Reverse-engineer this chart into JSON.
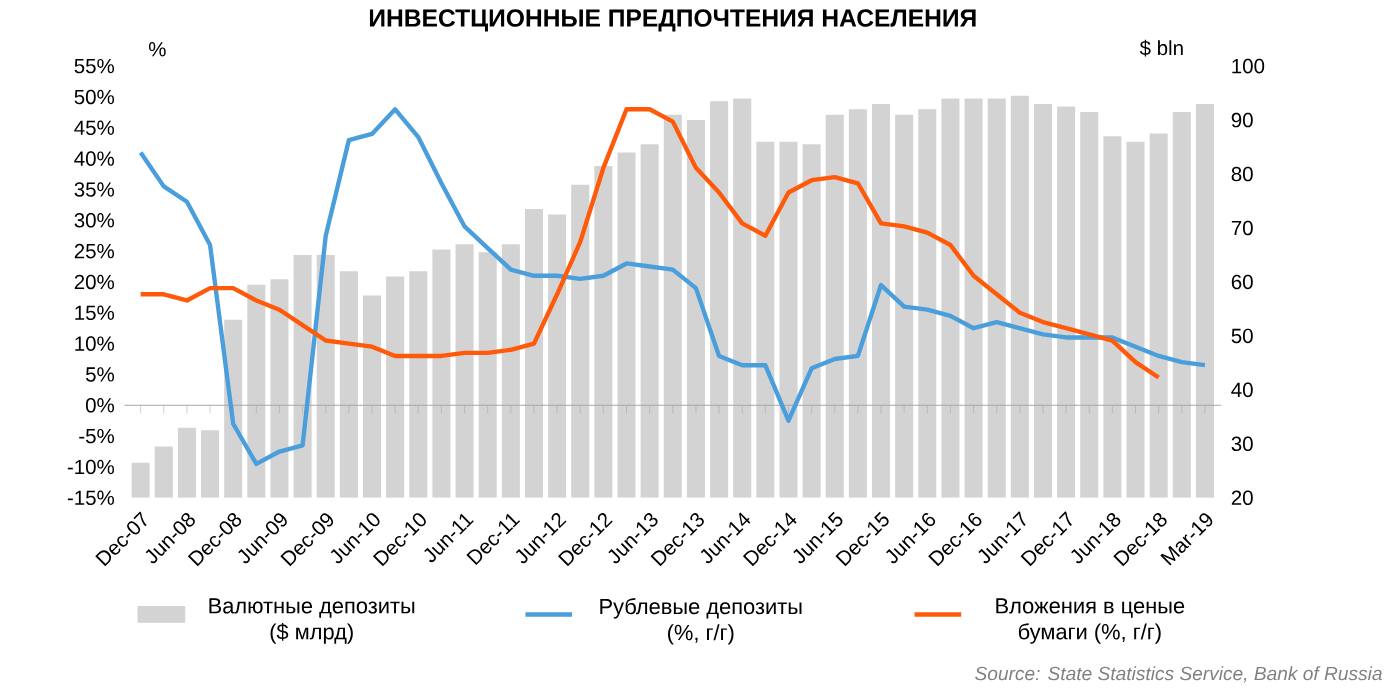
{
  "chart_data": {
    "type": "bar",
    "title": "ИНВЕСТЦИОННЫЕ ПРЕДПОЧТЕНИЯ НАСЕЛЕНИЯ",
    "ylabel": "%",
    "y2label": "$ bln",
    "categories": [
      "Dec-07",
      null,
      "Jun-08",
      null,
      "Dec-08",
      null,
      "Jun-09",
      null,
      "Dec-09",
      null,
      "Jun-10",
      null,
      "Dec-10",
      null,
      "Jun-11",
      null,
      "Dec-11",
      null,
      "Jun-12",
      null,
      "Dec-12",
      null,
      "Jun-13",
      null,
      "Dec-13",
      null,
      "Jun-14",
      null,
      "Dec-14",
      null,
      "Jun-15",
      null,
      "Dec-15",
      null,
      "Jun-16",
      null,
      "Dec-16",
      null,
      "Jun-17",
      null,
      "Dec-17",
      null,
      "Jun-18",
      null,
      "Dec-18",
      null,
      "Mar-19"
    ],
    "series": [
      {
        "name": "Валютные депозиты ($ млрд)",
        "type": "bar",
        "axis": "y2",
        "color": "#d3d3d3",
        "values": [
          26.5,
          29.5,
          33,
          32.5,
          53,
          59.5,
          60.5,
          65,
          65,
          62,
          57.5,
          61,
          62,
          66,
          67,
          65.5,
          67,
          73.5,
          72.5,
          78,
          81.5,
          84,
          85.5,
          91,
          90,
          93.5,
          94,
          86,
          86,
          85.5,
          91,
          92,
          93,
          91,
          92,
          94,
          94,
          94,
          94.5,
          93,
          92.5,
          91.5,
          87,
          86,
          87.5,
          91.5,
          93
        ]
      },
      {
        "name": "Рублевые депозиты (%, г/г)",
        "type": "line",
        "color": "#4a9edb",
        "values": [
          41,
          35.5,
          33,
          26,
          -3,
          -9.5,
          -7.5,
          -6.5,
          27.5,
          43,
          44,
          48,
          43.5,
          36,
          29,
          25.5,
          22,
          21,
          21,
          20.5,
          21,
          23,
          22.5,
          22,
          19,
          8,
          6.5,
          6.5,
          -2.5,
          6,
          7.5,
          8,
          19.5,
          16,
          15.5,
          14.5,
          12.5,
          13.5,
          12.5,
          11.5,
          11,
          11,
          11,
          9.5,
          8,
          7,
          6.5
        ]
      },
      {
        "name": "Вложения в ценые бумаги (%, г/г)",
        "type": "line",
        "color": "#ff5a0a",
        "values": [
          18,
          18,
          17,
          19,
          19,
          17,
          15.5,
          13,
          10.5,
          10,
          9.5,
          8,
          8,
          8,
          8.5,
          8.5,
          9,
          10,
          18,
          26.5,
          38.5,
          48,
          48,
          46,
          38.5,
          34.5,
          29.5,
          27.5,
          34.5,
          36.5,
          37,
          36,
          29.5,
          29,
          28,
          26,
          21,
          18,
          15,
          13.5,
          12.5,
          11.5,
          10.5,
          7,
          4.5,
          null,
          null
        ]
      }
    ],
    "ylim": [
      -15,
      55
    ],
    "yticks": [
      {
        "value": -15,
        "label": "-15%"
      },
      {
        "value": -10,
        "label": "-10%"
      },
      {
        "value": -5,
        "label": "-5%"
      },
      {
        "value": 0,
        "label": "0%"
      },
      {
        "value": 5,
        "label": "5%"
      },
      {
        "value": 10,
        "label": "10%"
      },
      {
        "value": 15,
        "label": "15%"
      },
      {
        "value": 20,
        "label": "20%"
      },
      {
        "value": 25,
        "label": "25%"
      },
      {
        "value": 30,
        "label": "30%"
      },
      {
        "value": 35,
        "label": "35%"
      },
      {
        "value": 40,
        "label": "40%"
      },
      {
        "value": 45,
        "label": "45%"
      },
      {
        "value": 50,
        "label": "50%"
      },
      {
        "value": 55,
        "label": "55%"
      }
    ],
    "y2lim": [
      20,
      100
    ],
    "y2ticks": [
      20,
      30,
      40,
      50,
      60,
      70,
      80,
      90,
      100
    ],
    "legend": "bottom",
    "annotations": [
      "Source: State Statistics Service, Bank of Russia"
    ]
  }
}
